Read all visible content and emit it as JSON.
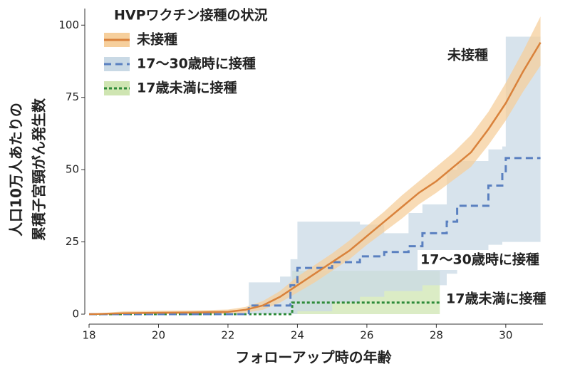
{
  "chart_data": {
    "type": "line",
    "legend_title": "HVPワクチン接種の状況",
    "ylabel": [
      "人口10万人あたりの",
      "累積子宮頸がん発生数"
    ],
    "xlabel": "フォローアップ時の年齢",
    "xlim": [
      18,
      31.07
    ],
    "ylim": [
      0,
      105
    ],
    "xticks": [
      18,
      20,
      22,
      24,
      26,
      28,
      30
    ],
    "yticks": [
      0,
      25,
      50,
      75,
      100
    ],
    "legend": "upper left",
    "series": [
      {
        "name": "未接種",
        "color": "#d9823b",
        "band_color": "#f6cf9c",
        "style": "solid",
        "step": false,
        "x": [
          18,
          19,
          20,
          21,
          22,
          22.5,
          23,
          23.5,
          24,
          24.5,
          25,
          25.5,
          26,
          26.5,
          27,
          27.5,
          28,
          28.5,
          29,
          29.5,
          30,
          30.5,
          31
        ],
        "values": [
          0,
          0.3,
          0.5,
          0.6,
          0.8,
          1.5,
          3,
          6,
          10,
          14,
          18,
          22,
          27,
          32,
          37,
          42,
          46,
          51,
          56,
          64,
          73,
          84,
          94
        ],
        "lower": [
          0,
          0,
          0,
          0,
          0,
          0.5,
          1.5,
          4,
          7.5,
          11,
          15,
          19,
          24,
          28.5,
          33,
          38,
          42,
          46.5,
          51,
          58.5,
          67,
          77,
          86
        ],
        "upper": [
          0,
          1,
          1.2,
          1.3,
          1.6,
          2.5,
          4.5,
          8,
          13,
          17,
          21,
          25.5,
          30.5,
          35.5,
          41,
          46,
          51,
          56,
          62,
          70,
          80,
          91,
          103
        ]
      },
      {
        "name": "17〜30歳時に接種",
        "color": "#5a80c0",
        "band_color": "#c9d9e5",
        "style": "dashed",
        "step": true,
        "x": [
          18,
          22.6,
          23.5,
          23.8,
          24.0,
          25.0,
          25.8,
          26.5,
          27.2,
          27.6,
          28.3,
          28.6,
          29.5,
          29.9,
          30.0,
          31.0
        ],
        "values": [
          0,
          3,
          3,
          10,
          16,
          18,
          20,
          21.5,
          23.5,
          28,
          32,
          37.5,
          44.5,
          49,
          54,
          54
        ],
        "lower": [
          0,
          0,
          0,
          0,
          1,
          4,
          6,
          8,
          8,
          10,
          14,
          18,
          24,
          25,
          25,
          25
        ],
        "upper": [
          0,
          11,
          13,
          19,
          32,
          32,
          31,
          28,
          35,
          38,
          50,
          53,
          57,
          58,
          96,
          96
        ]
      },
      {
        "name": "17歳未満に接種",
        "color": "#2e8b3a",
        "band_color": "#cfe5b2",
        "style": "dotted",
        "step": true,
        "x": [
          18,
          23.7,
          23.85,
          28.1
        ],
        "values": [
          0,
          0,
          4,
          4
        ],
        "lower": [
          0,
          0,
          0,
          0
        ],
        "upper": [
          0,
          0,
          15,
          15
        ]
      }
    ],
    "annotations": [
      "未接種",
      "17〜30歳時に接種",
      "17歳未満に接種"
    ]
  }
}
